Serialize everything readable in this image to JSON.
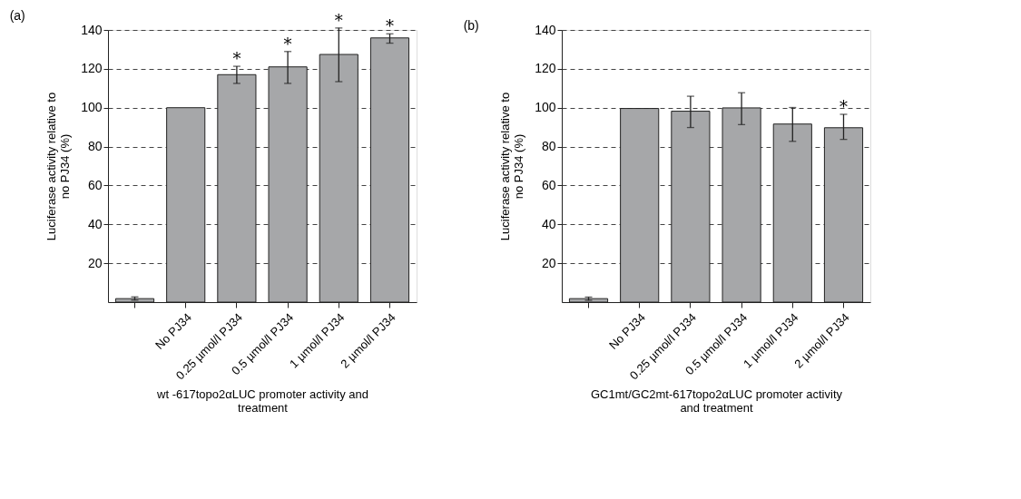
{
  "chart_data": [
    {
      "type": "bar",
      "title": "(a)",
      "xlabel": "wt -617topo2αLUC promoter activity and treatment",
      "ylabel": "Luciferase activity relative to no PJ34 (%)",
      "categories": [
        null,
        "No PJ34",
        "0.25 µmol/l PJ34",
        "0.5 µmol/l PJ34",
        "1 µmol/l PJ34",
        "2 µmol/l PJ34"
      ],
      "values": [
        1.8,
        100,
        117,
        121,
        127.4,
        135.9
      ],
      "color": "#a6a7a9",
      "errors": [
        [
          1,
          2.7
        ],
        null,
        [
          112.5,
          121.3
        ],
        [
          112.5,
          128.9
        ],
        [
          113.4,
          141
        ],
        [
          133.2,
          138
        ]
      ],
      "ylim": [
        0,
        140
      ],
      "yticks": [
        20,
        40,
        60,
        80,
        100,
        120,
        140
      ],
      "grid": "y",
      "annotations": [
        {
          "text": "*",
          "x": "0.25 µmol/l PJ34",
          "y": 121.3
        },
        {
          "text": "*",
          "x": "0.5 µmol/l PJ34",
          "y": 128.9
        },
        {
          "text": "*",
          "x": "1 µmol/l PJ34",
          "y": 141
        },
        {
          "text": "*",
          "x": "2 µmol/l PJ34",
          "y": 138
        }
      ]
    },
    {
      "type": "bar",
      "title": "(b)",
      "xlabel": "GC1mt/GC2mt-617topo2αLUC promoter activity and treatment",
      "ylabel": "Luciferase activity relative to no PJ34 (%)",
      "categories": [
        null,
        "No PJ34",
        "0.25 µmol/l PJ34",
        "0.5 µmol/l PJ34",
        "1 µmol/l PJ34",
        "2 µmol/l PJ34"
      ],
      "values": [
        1.8,
        99.6,
        98.2,
        99.9,
        91.6,
        89.7
      ],
      "color": "#a6a7a9",
      "errors": [
        [
          0.9,
          2.6
        ],
        null,
        [
          89.8,
          105.9
        ],
        [
          91.3,
          107.7
        ],
        [
          82.7,
          100.1
        ],
        [
          83.7,
          96.6
        ]
      ],
      "ylim": [
        0,
        140
      ],
      "yticks": [
        20,
        40,
        60,
        80,
        100,
        120,
        140
      ],
      "grid": "y",
      "annotations": [
        {
          "text": "*",
          "x": "2 µmol/l PJ34",
          "y": 96.6
        }
      ]
    }
  ]
}
